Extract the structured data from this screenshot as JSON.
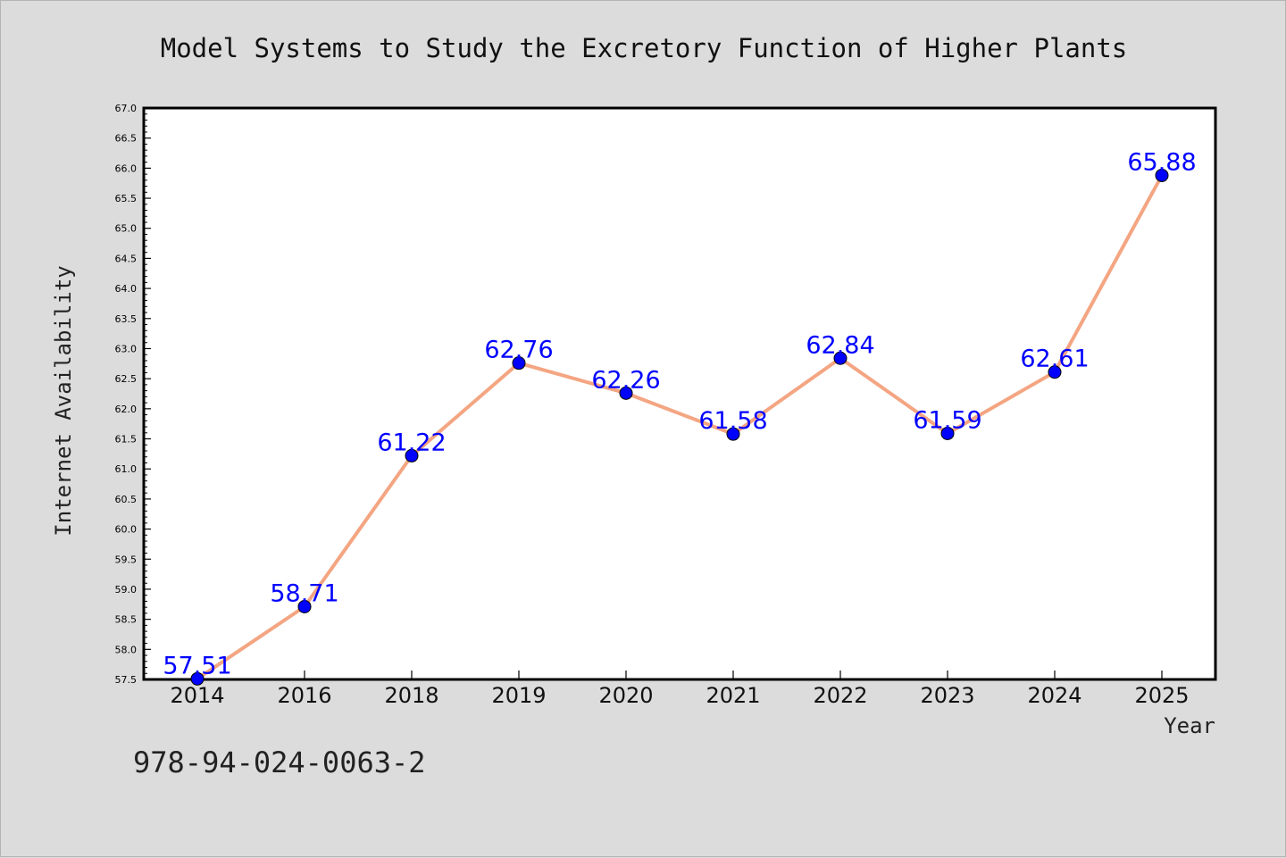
{
  "chart_data": {
    "type": "line",
    "title": "Model Systems to Study the Excretory Function of Higher Plants",
    "xlabel": "Year",
    "ylabel": "Internet Availability",
    "categories": [
      "2014",
      "2016",
      "2018",
      "2019",
      "2020",
      "2021",
      "2022",
      "2023",
      "2024",
      "2025"
    ],
    "series": [
      {
        "values": [
          57.51,
          58.71,
          61.22,
          62.76,
          62.26,
          61.58,
          62.84,
          61.59,
          62.61,
          65.88
        ]
      }
    ],
    "data_labels": [
      "57.51",
      "58.71",
      "61.22",
      "62.76",
      "62.26",
      "61.58",
      "62.84",
      "61.59",
      "62.61",
      "65.88"
    ],
    "ylim": [
      57.5,
      67.0
    ],
    "y_ticks": [
      "57.5",
      "58.0",
      "58.5",
      "59.0",
      "59.5",
      "60.0",
      "60.5",
      "61.0",
      "61.5",
      "62.0",
      "62.5",
      "63.0",
      "63.5",
      "64.0",
      "64.5",
      "65.0",
      "65.5",
      "66.0",
      "66.5",
      "67.0"
    ],
    "grid": false,
    "line_color": "#f4a582",
    "marker_color": "#0000ff",
    "label_color": "#0000ff",
    "background_color": "#dcdcdc",
    "plot_background": "#ffffff"
  },
  "footer": {
    "code": "978-94-024-0063-2"
  }
}
